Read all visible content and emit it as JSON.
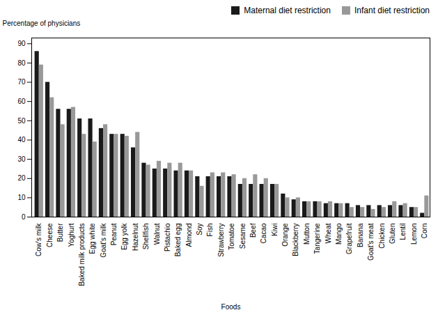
{
  "chart_data": {
    "type": "bar",
    "categories": [
      "Cow's milk",
      "Cheese",
      "Butter",
      "Yoghurt",
      "Baked milk products",
      "Egg white",
      "Goat's milk",
      "Peanut",
      "Egg yolk",
      "Hazelnut",
      "Shellfish",
      "Walnut",
      "Pistachio",
      "Baked egg",
      "Almond",
      "Soy",
      "Fish",
      "Strawberry",
      "Tomatoe",
      "Sesame",
      "Beef",
      "Cacao",
      "Kiwi",
      "Orange",
      "Blackberry",
      "Mutton",
      "Tangerine",
      "Wheat",
      "Mango",
      "Grapefruit",
      "Banana",
      "Goat's meat",
      "Chicken",
      "Gluten",
      "Lentil",
      "Lemon",
      "Corn"
    ],
    "series": [
      {
        "name": "Maternal diet restriction",
        "color": "#1a1a1a",
        "values": [
          86,
          70,
          56,
          56,
          51,
          51,
          46,
          43,
          43,
          36,
          28,
          25,
          25,
          24,
          24,
          21,
          21,
          21,
          21,
          17,
          17,
          17,
          17,
          12,
          9,
          8,
          8,
          7,
          7,
          7,
          6,
          6,
          6,
          6,
          6,
          5,
          2
        ]
      },
      {
        "name": "Infant diet restriction",
        "color": "#999999",
        "values": [
          79,
          62,
          48,
          57,
          43,
          39,
          48,
          43,
          42,
          44,
          27,
          29,
          28,
          28,
          24,
          16,
          23,
          23,
          22,
          20,
          22,
          20,
          17,
          10,
          10,
          8,
          8,
          8,
          7,
          5,
          5,
          4,
          5,
          8,
          7,
          5,
          11
        ]
      }
    ],
    "xlabel": "Foods",
    "ylabel": "Percentage of physicians",
    "ylim": [
      0,
      93
    ],
    "yticks": [
      0,
      10,
      20,
      30,
      40,
      50,
      60,
      70,
      80,
      90
    ],
    "legend": "upper right",
    "grid": false
  }
}
